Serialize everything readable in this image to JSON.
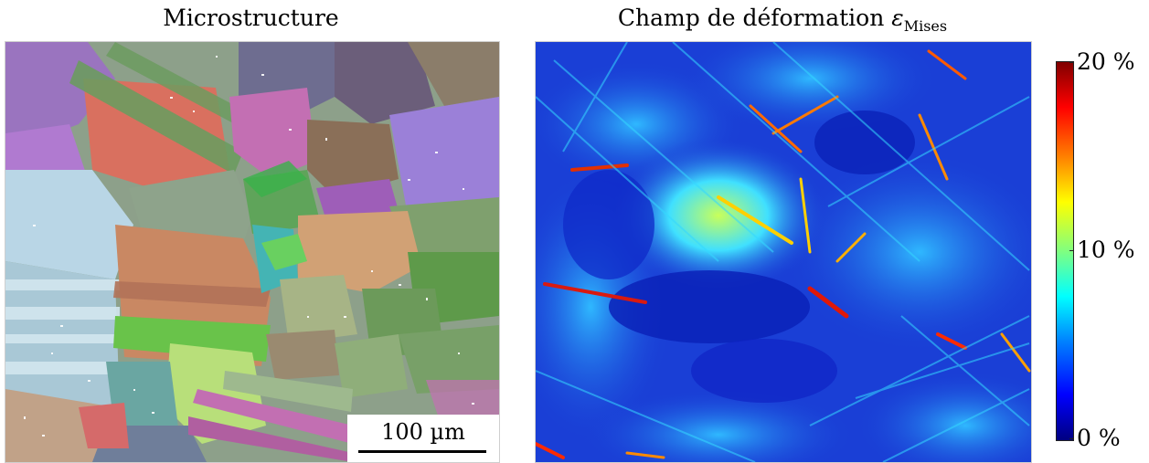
{
  "left_panel": {
    "title": "Microstructure",
    "scale_bar": "100 µm"
  },
  "right_panel": {
    "title_prefix": "Champ de déformation ",
    "title_symbol": "ε",
    "title_subscript": "Mises"
  },
  "colorbar": {
    "colormap": "jet",
    "min_color": "#000080",
    "max_color": "#800000",
    "labels": {
      "max": "20 %",
      "mid": "10 %",
      "min": "0 %"
    }
  }
}
